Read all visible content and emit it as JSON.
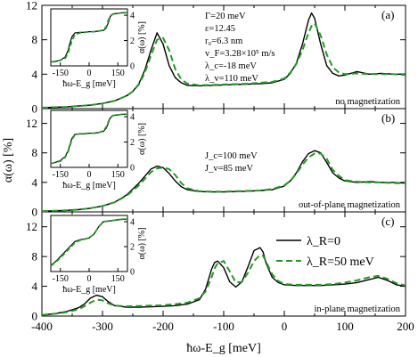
{
  "figure": {
    "xlabel": "ħω-E_g [meV]",
    "ylabel": "α(ω) [%]",
    "inset_xlabel": "ħω-E_g [meV]",
    "inset_ylabel": "α(ω) [%]"
  },
  "legend": {
    "entries": [
      {
        "label": "λ_R=0",
        "color": "#000000",
        "dash": "solid"
      },
      {
        "label": "λ_R=50 meV",
        "color": "#229a22",
        "dash": "dashed"
      }
    ]
  },
  "chart_data": [
    {
      "type": "line",
      "panel": "(a)",
      "annotation": "no magnetization",
      "params": [
        "Γ=20 meV",
        "ε=12.45",
        "r₀=6.3 nm",
        "v_F=3.28×10⁵ m/s",
        "λ_c=-18 meV",
        "λ_v=110 meV"
      ],
      "xlim": [
        -400,
        200
      ],
      "ylim": [
        0,
        12
      ],
      "yticks": [
        0,
        4,
        8,
        12
      ],
      "x": [
        -400,
        -380,
        -360,
        -340,
        -320,
        -300,
        -280,
        -260,
        -250,
        -240,
        -230,
        -220,
        -210,
        -200,
        -190,
        -180,
        -170,
        -160,
        -140,
        -120,
        -100,
        -80,
        -60,
        -40,
        -20,
        0,
        10,
        20,
        30,
        40,
        45,
        50,
        60,
        70,
        80,
        90,
        100,
        120,
        140,
        160,
        180,
        200
      ],
      "series": [
        {
          "name": "λ_R=0",
          "color": "#000000",
          "dash": "solid",
          "values": [
            0.1,
            0.15,
            0.2,
            0.3,
            0.4,
            0.6,
            0.9,
            1.5,
            2.0,
            2.9,
            4.5,
            6.8,
            8.8,
            7.5,
            5.0,
            3.6,
            3.0,
            2.7,
            2.65,
            2.7,
            2.75,
            2.8,
            2.85,
            2.9,
            3.0,
            3.4,
            4.1,
            5.3,
            7.5,
            10.3,
            11.1,
            10.5,
            7.5,
            5.0,
            4.1,
            3.8,
            3.9,
            4.3,
            4.0,
            4.1,
            4.0,
            4.0
          ]
        },
        {
          "name": "λ_R=50 meV",
          "color": "#229a22",
          "dash": "dashed",
          "values": [
            0.1,
            0.15,
            0.2,
            0.3,
            0.4,
            0.6,
            0.9,
            1.5,
            2.0,
            2.8,
            4.2,
            6.2,
            8.0,
            8.2,
            6.8,
            4.6,
            3.4,
            2.9,
            2.7,
            2.75,
            2.8,
            2.85,
            2.9,
            3.0,
            3.1,
            3.5,
            4.2,
            5.2,
            6.8,
            8.8,
            9.6,
            9.9,
            8.5,
            6.3,
            4.8,
            4.2,
            4.0,
            4.1,
            4.0,
            4.0,
            4.0,
            3.9
          ]
        }
      ],
      "inset": {
        "xlim": [
          -200,
          200
        ],
        "ylim": [
          0,
          4.5
        ],
        "xticks": [
          -150,
          0,
          150
        ],
        "yticks": [
          0,
          2,
          4
        ],
        "x": [
          -200,
          -175,
          -150,
          -125,
          -110,
          -100,
          -90,
          -75,
          -50,
          -25,
          0,
          25,
          50,
          75,
          90,
          100,
          110,
          125,
          150,
          175,
          200
        ],
        "series": [
          {
            "name": "λ_R=0",
            "values": [
              0.3,
              0.35,
              0.45,
              0.7,
              1.2,
              1.8,
              2.3,
              2.6,
              2.65,
              2.65,
              2.7,
              2.7,
              2.75,
              2.8,
              3.0,
              3.4,
              3.9,
              4.1,
              4.15,
              4.2,
              4.2
            ]
          },
          {
            "name": "λ_R=50 meV",
            "values": [
              0.3,
              0.35,
              0.45,
              0.6,
              1.0,
              1.5,
              2.0,
              2.45,
              2.6,
              2.65,
              2.7,
              2.7,
              2.75,
              2.85,
              3.1,
              3.6,
              3.95,
              4.1,
              4.15,
              4.2,
              4.2
            ]
          }
        ]
      }
    },
    {
      "type": "line",
      "panel": "(b)",
      "annotation": "out-of-plane magnetization",
      "params": [
        "J_c=100 meV",
        "J_v=85 meV"
      ],
      "xlim": [
        -400,
        200
      ],
      "ylim": [
        0,
        14
      ],
      "yticks": [
        0,
        4,
        8,
        12
      ],
      "x": [
        -400,
        -380,
        -360,
        -340,
        -320,
        -300,
        -280,
        -260,
        -240,
        -220,
        -210,
        -200,
        -190,
        -180,
        -170,
        -160,
        -140,
        -120,
        -100,
        -80,
        -60,
        -40,
        -20,
        0,
        10,
        20,
        30,
        40,
        50,
        60,
        70,
        80,
        90,
        100,
        120,
        140,
        160,
        180,
        200
      ],
      "series": [
        {
          "name": "λ_R=0",
          "color": "#000000",
          "dash": "solid",
          "values": [
            0.1,
            0.15,
            0.2,
            0.3,
            0.5,
            0.8,
            1.3,
            2.3,
            3.9,
            5.8,
            6.2,
            6.0,
            5.2,
            4.2,
            3.4,
            3.0,
            2.75,
            2.7,
            2.7,
            2.75,
            2.8,
            2.9,
            3.0,
            3.5,
            4.2,
            5.3,
            6.8,
            7.9,
            8.3,
            8.0,
            6.7,
            5.3,
            4.6,
            4.2,
            4.0,
            4.1,
            4.0,
            4.0,
            3.9
          ]
        },
        {
          "name": "λ_R=50 meV",
          "color": "#229a22",
          "dash": "dashed",
          "values": [
            0.1,
            0.15,
            0.2,
            0.3,
            0.5,
            0.8,
            1.3,
            2.2,
            3.6,
            5.4,
            5.9,
            6.0,
            5.8,
            5.0,
            3.9,
            3.2,
            2.8,
            2.75,
            2.75,
            2.8,
            2.85,
            2.9,
            3.1,
            3.6,
            4.2,
            5.2,
            6.4,
            7.4,
            7.9,
            7.9,
            7.2,
            5.7,
            4.9,
            4.3,
            4.1,
            4.0,
            4.0,
            3.9,
            3.9
          ]
        }
      ],
      "inset": {
        "xlim": [
          -200,
          200
        ],
        "ylim": [
          0,
          4.5
        ],
        "xticks": [
          -150,
          0,
          150
        ],
        "yticks": [
          0,
          2,
          4
        ],
        "x": [
          -200,
          -175,
          -150,
          -125,
          -110,
          -100,
          -90,
          -75,
          -50,
          -25,
          0,
          25,
          50,
          75,
          90,
          100,
          110,
          125,
          150,
          175,
          200
        ],
        "series": [
          {
            "name": "λ_R=0",
            "values": [
              0.3,
              0.4,
              0.55,
              0.85,
              1.3,
              1.8,
              2.3,
              2.6,
              2.65,
              2.65,
              2.7,
              2.7,
              2.75,
              2.85,
              3.1,
              3.5,
              3.9,
              4.1,
              4.15,
              4.2,
              4.2
            ]
          },
          {
            "name": "λ_R=50 meV",
            "values": [
              0.3,
              0.4,
              0.5,
              0.8,
              1.2,
              1.7,
              2.2,
              2.55,
              2.65,
              2.65,
              2.7,
              2.7,
              2.75,
              2.9,
              3.2,
              3.6,
              3.95,
              4.1,
              4.15,
              4.2,
              4.2
            ]
          }
        ]
      }
    },
    {
      "type": "line",
      "panel": "(c)",
      "annotation": "in-plane magnetization",
      "xlim": [
        -400,
        200
      ],
      "ylim": [
        0,
        14
      ],
      "yticks": [
        0,
        4,
        8,
        12
      ],
      "x": [
        -400,
        -380,
        -360,
        -340,
        -330,
        -320,
        -310,
        -300,
        -290,
        -280,
        -260,
        -240,
        -220,
        -200,
        -180,
        -160,
        -140,
        -130,
        -120,
        -115,
        -110,
        -100,
        -90,
        -80,
        -70,
        -60,
        -50,
        -40,
        -35,
        -30,
        -20,
        -10,
        0,
        20,
        40,
        60,
        80,
        100,
        120,
        140,
        155,
        170,
        185,
        200
      ],
      "series": [
        {
          "name": "λ_R=0",
          "color": "#000000",
          "dash": "solid",
          "values": [
            0.15,
            0.3,
            0.6,
            1.1,
            1.6,
            2.4,
            2.8,
            2.6,
            1.9,
            1.4,
            1.2,
            1.2,
            1.25,
            1.3,
            1.4,
            1.6,
            2.2,
            3.6,
            6.3,
            7.2,
            7.4,
            6.5,
            4.6,
            3.9,
            4.6,
            6.6,
            8.8,
            9.2,
            8.6,
            7.1,
            5.2,
            4.5,
            4.2,
            4.1,
            4.1,
            4.1,
            4.2,
            4.3,
            4.5,
            4.9,
            5.2,
            4.8,
            4.2,
            4.0
          ]
        },
        {
          "name": "λ_R=50 meV",
          "color": "#229a22",
          "dash": "dashed",
          "values": [
            0.15,
            0.3,
            0.5,
            0.9,
            1.3,
            1.8,
            2.2,
            2.1,
            1.7,
            1.4,
            1.3,
            1.35,
            1.4,
            1.45,
            1.6,
            1.8,
            2.4,
            3.3,
            5.2,
            6.4,
            7.1,
            7.4,
            6.0,
            4.5,
            4.6,
            5.8,
            7.4,
            8.2,
            8.1,
            7.3,
            5.6,
            4.7,
            4.3,
            4.2,
            4.2,
            4.2,
            4.3,
            4.5,
            4.8,
            5.2,
            5.4,
            5.0,
            4.4,
            4.1
          ]
        }
      ],
      "inset": {
        "xlim": [
          -200,
          200
        ],
        "ylim": [
          0,
          4.5
        ],
        "xticks": [
          -150,
          0,
          150
        ],
        "yticks": [
          0,
          2,
          4
        ],
        "x": [
          -200,
          -175,
          -150,
          -125,
          -100,
          -75,
          -50,
          -25,
          0,
          25,
          50,
          75,
          100,
          125,
          150,
          175,
          200
        ],
        "series": [
          {
            "name": "λ_R=0",
            "values": [
              0.5,
              0.8,
              1.2,
              1.6,
              2.0,
              2.4,
              2.55,
              2.6,
              2.7,
              3.0,
              3.6,
              4.0,
              4.05,
              4.1,
              4.15,
              4.2,
              4.2
            ]
          },
          {
            "name": "λ_R=50 meV",
            "values": [
              0.45,
              0.75,
              1.1,
              1.5,
              1.9,
              2.3,
              2.5,
              2.6,
              2.7,
              3.0,
              3.6,
              4.0,
              4.05,
              4.1,
              4.15,
              4.2,
              4.2
            ]
          }
        ]
      }
    }
  ]
}
